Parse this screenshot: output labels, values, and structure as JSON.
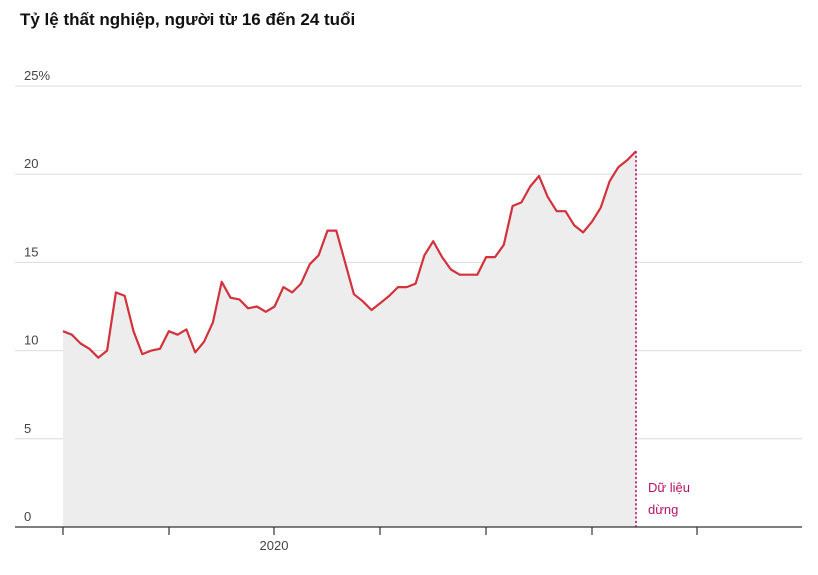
{
  "chart_data": {
    "type": "area",
    "title": "Tỷ lệ thất nghiệp, người từ 16 đến 24 tuổi",
    "y_unit_suffix": "%",
    "ylim": [
      0,
      25
    ],
    "yticks": [
      0,
      5,
      10,
      15,
      20,
      25
    ],
    "ytick_labels": [
      "0",
      "5",
      "10",
      "15",
      "20",
      "25%"
    ],
    "x_tick_label": "2020",
    "grid": true,
    "line_color": "#d2323c",
    "area_color": "#ededee",
    "annotation": {
      "line1": "Dữ liệu",
      "line2": "dừng",
      "color": "#b5126b"
    },
    "series": [
      {
        "values": [
          11.1,
          10.9,
          10.4,
          10.1,
          9.6,
          10.0,
          13.3,
          13.1,
          11.1,
          9.8,
          10.0,
          10.1,
          11.1,
          10.9,
          11.2,
          9.9,
          10.5,
          11.6,
          13.9,
          13.0,
          12.9,
          12.4,
          12.5,
          12.2,
          12.5,
          13.6,
          13.3,
          13.8,
          14.9,
          15.4,
          16.8,
          16.8,
          15.0,
          13.2,
          12.8,
          12.3,
          12.7,
          13.1,
          13.6,
          13.6,
          13.8,
          15.4,
          16.2,
          15.3,
          14.6,
          14.3,
          14.3,
          14.3,
          15.3,
          15.3,
          16.0,
          18.2,
          18.4,
          19.3,
          19.9,
          18.7,
          17.9,
          17.9,
          17.1,
          16.7,
          17.3,
          18.1,
          19.6,
          20.4,
          20.8,
          21.3
        ]
      }
    ]
  }
}
